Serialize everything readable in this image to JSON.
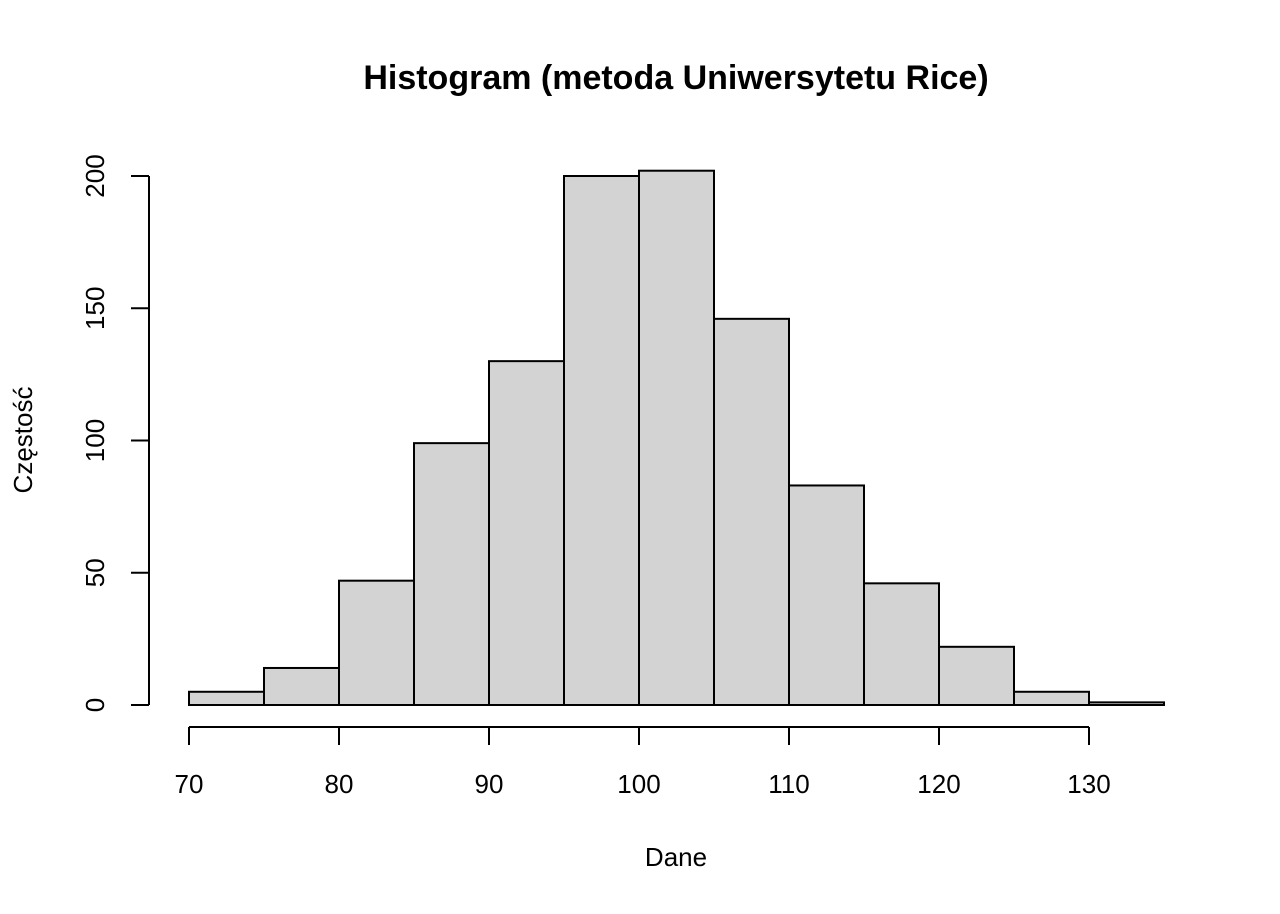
{
  "chart_data": {
    "type": "bar",
    "title": "Histogram (metoda Uniwersytetu Rice)",
    "xlabel": "Dane",
    "ylabel": "Częstość",
    "bins": [
      {
        "start": 70,
        "end": 75,
        "count": 5
      },
      {
        "start": 75,
        "end": 80,
        "count": 14
      },
      {
        "start": 80,
        "end": 85,
        "count": 47
      },
      {
        "start": 85,
        "end": 90,
        "count": 99
      },
      {
        "start": 90,
        "end": 95,
        "count": 130
      },
      {
        "start": 95,
        "end": 100,
        "count": 200
      },
      {
        "start": 100,
        "end": 105,
        "count": 202
      },
      {
        "start": 105,
        "end": 110,
        "count": 146
      },
      {
        "start": 110,
        "end": 115,
        "count": 83
      },
      {
        "start": 115,
        "end": 120,
        "count": 46
      },
      {
        "start": 120,
        "end": 125,
        "count": 22
      },
      {
        "start": 125,
        "end": 130,
        "count": 5
      },
      {
        "start": 130,
        "end": 135,
        "count": 1
      }
    ],
    "xlim": [
      70,
      135
    ],
    "ylim": [
      0,
      200
    ],
    "x_ticks": [
      "70",
      "80",
      "90",
      "100",
      "110",
      "120",
      "130"
    ],
    "y_ticks": [
      "0",
      "50",
      "100",
      "150",
      "200"
    ],
    "grid": false,
    "bar_color": "#d3d3d3",
    "edge_color": "#000000"
  }
}
